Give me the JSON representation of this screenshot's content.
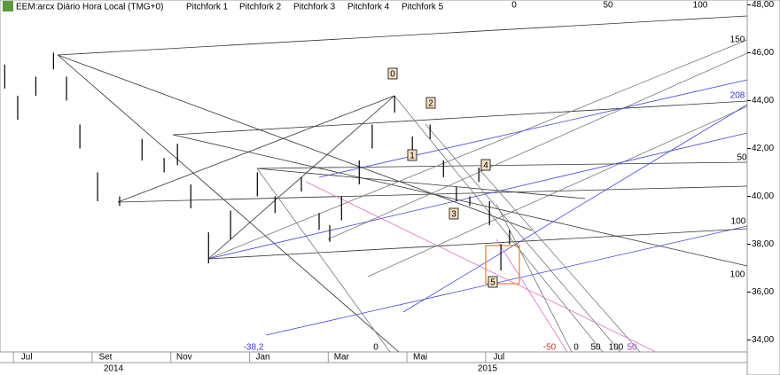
{
  "toolbar": {
    "symbol": "EEM:arcx Diário Hora Local (TMG+0)",
    "tools": [
      "Pitchfork 1",
      "Pitchfork 2",
      "Pitchfork 3",
      "Pitchfork 4",
      "Pitchfork 5"
    ]
  },
  "chart_data": {
    "type": "ohlc",
    "x": [
      -0.56,
      -0.23,
      0.23,
      0.68,
      1.01,
      1.35,
      1.8,
      2.36,
      2.93,
      3.49,
      3.83,
      4.17,
      4.62,
      5.18,
      5.86,
      6.31,
      6.98,
      7.43,
      7.7,
      8.0,
      8.45,
      8.78,
      9.35,
      9.8,
      10.25,
      10.59,
      10.92,
      11.26,
      11.49,
      11.76,
      12.05,
      12.27
    ],
    "high": [
      45.5,
      44.2,
      45.0,
      46.0,
      45.0,
      43.0,
      41.0,
      40.0,
      42.4,
      41.6,
      42.2,
      40.5,
      38.5,
      39.4,
      41.0,
      40.0,
      40.8,
      39.3,
      38.8,
      40.0,
      41.5,
      43.0,
      44.2,
      42.5,
      43.0,
      41.5,
      40.4,
      40.0,
      41.2,
      39.8,
      38.0,
      38.6
    ],
    "low": [
      44.5,
      43.2,
      44.2,
      45.3,
      44.0,
      42.0,
      39.8,
      39.6,
      41.5,
      41.0,
      41.3,
      39.5,
      37.2,
      38.2,
      40.0,
      39.3,
      40.2,
      38.6,
      38.1,
      39.0,
      40.5,
      42.0,
      43.5,
      41.8,
      42.4,
      40.8,
      39.8,
      39.6,
      40.6,
      38.8,
      36.9,
      38.0
    ],
    "color": "#000000",
    "xlim": [
      -0.68,
      18.31
    ],
    "xticks": [
      {
        "value": 0,
        "label": "Jul"
      },
      {
        "value": 2,
        "label": "Set"
      },
      {
        "value": 4,
        "label": "Nov"
      },
      {
        "value": 6,
        "label": "Jan"
      },
      {
        "value": 8,
        "label": "Mar"
      },
      {
        "value": 10,
        "label": "Mai"
      },
      {
        "value": 12,
        "label": "Jul"
      }
    ],
    "years": [
      "2014",
      "2015"
    ],
    "ylim": [
      33.5,
      48.2
    ],
    "yticks": [
      {
        "value": 34,
        "label": "34,00"
      },
      {
        "value": 36,
        "label": "36,00"
      },
      {
        "value": 38,
        "label": "38,00"
      },
      {
        "value": 40,
        "label": "40,00"
      },
      {
        "value": 42,
        "label": "42,00"
      },
      {
        "value": 44,
        "label": "44,00"
      },
      {
        "value": 46,
        "label": "46,00"
      },
      {
        "value": 48,
        "label": "48,00"
      }
    ],
    "annotations": [
      "0",
      "50",
      "100",
      "150",
      "208",
      "50",
      "100",
      "100",
      "-38,2",
      "0",
      "-50",
      "0",
      "50",
      "100",
      "50"
    ],
    "waves": [
      "0",
      "2",
      "1",
      "4",
      "3",
      "5"
    ]
  }
}
